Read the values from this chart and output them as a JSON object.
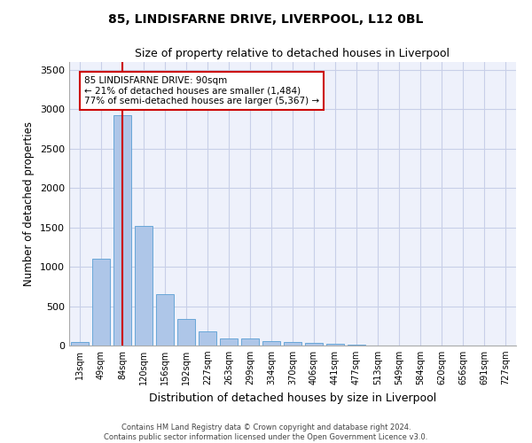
{
  "title1": "85, LINDISFARNE DRIVE, LIVERPOOL, L12 0BL",
  "title2": "Size of property relative to detached houses in Liverpool",
  "xlabel": "Distribution of detached houses by size in Liverpool",
  "ylabel": "Number of detached properties",
  "footer1": "Contains HM Land Registry data © Crown copyright and database right 2024.",
  "footer2": "Contains public sector information licensed under the Open Government Licence v3.0.",
  "annotation_line1": "85 LINDISFARNE DRIVE: 90sqm",
  "annotation_line2": "← 21% of detached houses are smaller (1,484)",
  "annotation_line3": "77% of semi-detached houses are larger (5,367) →",
  "bar_color": "#aec6e8",
  "bar_edge_color": "#5a9fd4",
  "highlight_line_color": "#cc0000",
  "highlight_bar_index": 2,
  "categories": [
    "13sqm",
    "49sqm",
    "84sqm",
    "120sqm",
    "156sqm",
    "192sqm",
    "227sqm",
    "263sqm",
    "299sqm",
    "334sqm",
    "370sqm",
    "406sqm",
    "441sqm",
    "477sqm",
    "513sqm",
    "549sqm",
    "584sqm",
    "620sqm",
    "656sqm",
    "691sqm",
    "727sqm"
  ],
  "values": [
    50,
    1100,
    2930,
    1520,
    650,
    340,
    185,
    95,
    85,
    55,
    45,
    30,
    20,
    10,
    5,
    3,
    2,
    1,
    1,
    0,
    0
  ],
  "ylim": [
    0,
    3600
  ],
  "yticks": [
    0,
    500,
    1000,
    1500,
    2000,
    2500,
    3000,
    3500
  ],
  "background_color": "#eef1fb",
  "grid_color": "#c8cfe8"
}
